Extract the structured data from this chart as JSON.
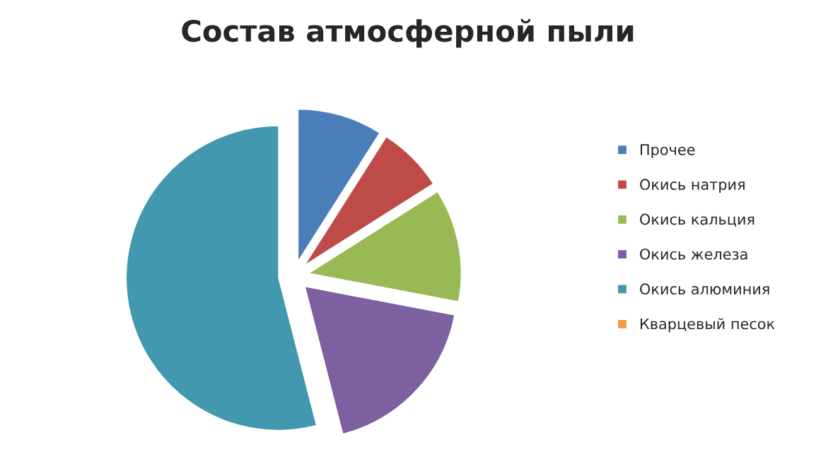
{
  "chart_data": {
    "type": "pie",
    "title": "Состав атмосферной пыли",
    "categories": [
      "Прочее",
      "Окись натрия",
      "Окись кальция",
      "Окись железа",
      "Окись алюминия",
      "Кварцевый песок"
    ],
    "values": [
      9,
      7,
      12,
      18,
      54,
      0
    ],
    "colors": [
      "#4a7ebb",
      "#be4b48",
      "#98b954",
      "#7d60a0",
      "#4198af",
      "#f79646"
    ],
    "legend": "right"
  }
}
